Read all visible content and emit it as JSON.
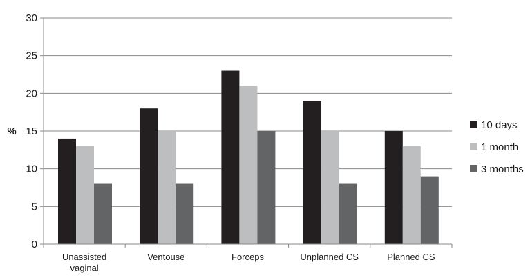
{
  "chart_data": {
    "type": "bar",
    "title": "",
    "xlabel": "",
    "ylabel": "%",
    "ylim": [
      0,
      30
    ],
    "y_ticks": [
      0,
      5,
      10,
      15,
      20,
      25,
      30
    ],
    "grid": true,
    "legend_position": "right",
    "categories": [
      [
        "Unassisted",
        "vaginal"
      ],
      [
        "Ventouse"
      ],
      [
        "Forceps"
      ],
      [
        "Unplanned CS"
      ],
      [
        "Planned CS"
      ]
    ],
    "series": [
      {
        "name": "10 days",
        "color": "#231f20",
        "values": [
          14,
          18,
          23,
          19,
          15
        ]
      },
      {
        "name": "1 month",
        "color": "#bcbec0",
        "values": [
          13,
          15,
          21,
          15,
          13
        ]
      },
      {
        "name": "3 months",
        "color": "#636466",
        "values": [
          8,
          8,
          15,
          8,
          9
        ]
      }
    ]
  }
}
